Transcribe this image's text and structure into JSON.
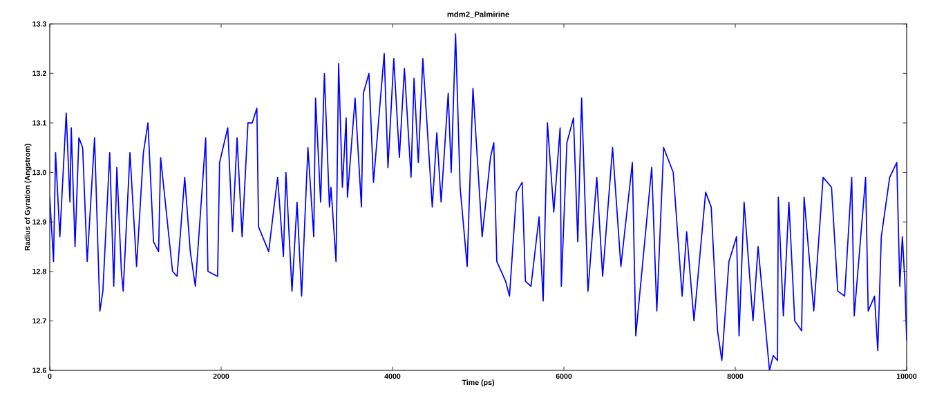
{
  "chart_data": {
    "type": "line",
    "title": "mdm2_Palmirine",
    "xlabel": "Time (ps)",
    "ylabel": "Radius of Gyration (Angstrom)",
    "color": "#0000ff",
    "marker": "none",
    "line_style": "solid",
    "grid": false,
    "xlim": [
      0,
      10000
    ],
    "ylim": [
      12.6,
      13.3
    ],
    "xticks": [
      0,
      2000,
      4000,
      6000,
      8000,
      10000
    ],
    "yticks": [
      {
        "value": 12.6,
        "label": "12.6"
      },
      {
        "value": 12.7,
        "label": "12.7"
      },
      {
        "value": 12.8,
        "label": "12.8"
      },
      {
        "value": 12.9,
        "label": "12.9"
      },
      {
        "value": 13.0,
        "label": "13.0"
      },
      {
        "value": 13.1,
        "label": "13.1"
      },
      {
        "value": 13.2,
        "label": "13.2"
      },
      {
        "value": 13.3,
        "label": "13.3"
      }
    ],
    "x": [
      0,
      44,
      68,
      118,
      192,
      236,
      251,
      295,
      340,
      384,
      437,
      523,
      585,
      620,
      700,
      747,
      783,
      836,
      857,
      936,
      1013,
      1093,
      1146,
      1211,
      1270,
      1294,
      1433,
      1486,
      1575,
      1640,
      1699,
      1820,
      1846,
      1959,
      1982,
      2077,
      2133,
      2186,
      2245,
      2313,
      2363,
      2417,
      2437,
      2555,
      2659,
      2727,
      2756,
      2827,
      2886,
      2939,
      3013,
      3081,
      3102,
      3161,
      3205,
      3264,
      3282,
      3341,
      3371,
      3415,
      3459,
      3474,
      3563,
      3637,
      3660,
      3725,
      3778,
      3903,
      3947,
      4015,
      4080,
      4139,
      4216,
      4251,
      4301,
      4354,
      4464,
      4517,
      4567,
      4650,
      4685,
      4736,
      4789,
      4871,
      4939,
      5025,
      5046,
      5143,
      5182,
      5217,
      5320,
      5365,
      5447,
      5513,
      5551,
      5616,
      5710,
      5758,
      5808,
      5882,
      5956,
      5970,
      6035,
      6112,
      6162,
      6207,
      6281,
      6384,
      6452,
      6568,
      6665,
      6799,
      6839,
      7025,
      7084,
      7164,
      7276,
      7380,
      7433,
      7518,
      7654,
      7719,
      7793,
      7843,
      7926,
      8015,
      8044,
      8103,
      8207,
      8266,
      8399,
      8443,
      8493,
      8502,
      8561,
      8626,
      8694,
      8774,
      8803,
      8916,
      9025,
      9123,
      9196,
      9276,
      9359,
      9388,
      9521,
      9551,
      9625,
      9663,
      9704,
      9802,
      9885,
      9920,
      9950,
      9979,
      10000
    ],
    "values": [
      12.95,
      12.82,
      13.04,
      12.87,
      13.12,
      12.94,
      13.09,
      12.85,
      13.07,
      13.05,
      12.82,
      13.07,
      12.72,
      12.76,
      13.04,
      12.77,
      13.01,
      12.8,
      12.76,
      13.04,
      12.81,
      13.04,
      13.1,
      12.86,
      12.84,
      13.03,
      12.8,
      12.79,
      12.99,
      12.84,
      12.77,
      13.07,
      12.8,
      12.79,
      13.02,
      13.09,
      12.88,
      13.07,
      12.87,
      13.1,
      13.1,
      13.13,
      12.89,
      12.84,
      12.99,
      12.83,
      13.0,
      12.76,
      12.94,
      12.75,
      13.05,
      12.87,
      13.15,
      12.94,
      13.2,
      12.93,
      12.97,
      12.82,
      13.22,
      12.97,
      13.11,
      12.95,
      13.15,
      12.93,
      13.16,
      13.2,
      12.98,
      13.24,
      13.01,
      13.23,
      13.03,
      13.21,
      12.99,
      13.19,
      13.02,
      13.23,
      12.93,
      13.08,
      12.94,
      13.16,
      13.0,
      13.28,
      12.97,
      12.81,
      13.17,
      12.93,
      12.87,
      13.03,
      13.06,
      12.82,
      12.78,
      12.75,
      12.96,
      12.98,
      12.78,
      12.77,
      12.91,
      12.74,
      13.1,
      12.92,
      13.09,
      12.77,
      13.06,
      13.11,
      12.86,
      13.15,
      12.76,
      12.99,
      12.79,
      13.05,
      12.81,
      13.02,
      12.67,
      13.01,
      12.72,
      13.05,
      13.0,
      12.75,
      12.88,
      12.7,
      12.96,
      12.93,
      12.68,
      12.62,
      12.82,
      12.87,
      12.67,
      12.94,
      12.7,
      12.85,
      12.6,
      12.63,
      12.62,
      12.95,
      12.71,
      12.94,
      12.7,
      12.68,
      12.95,
      12.72,
      12.99,
      12.97,
      12.76,
      12.75,
      12.99,
      12.71,
      12.99,
      12.72,
      12.75,
      12.64,
      12.87,
      12.99,
      13.02,
      12.77,
      12.87,
      12.78,
      12.66
    ]
  }
}
